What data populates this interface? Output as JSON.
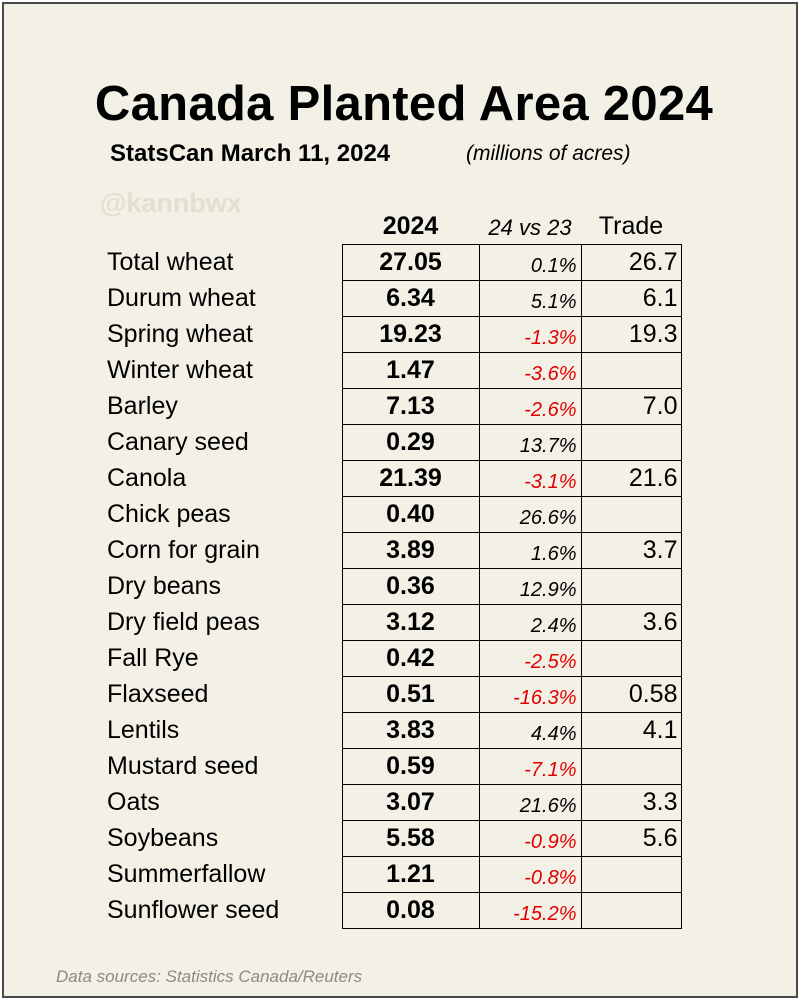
{
  "chart_data": {
    "type": "table",
    "title": "Canada Planted Area 2024",
    "subtitle": "StatsCan March 11, 2024",
    "units": "(millions of acres)",
    "watermark": "@kannbwx",
    "columns": [
      "2024",
      "24 vs 23",
      "Trade"
    ],
    "rows": [
      {
        "crop": "Total wheat",
        "value": "27.05",
        "change": "0.1%",
        "negative": false,
        "trade": "26.7"
      },
      {
        "crop": "Durum wheat",
        "value": "6.34",
        "change": "5.1%",
        "negative": false,
        "trade": "6.1"
      },
      {
        "crop": "Spring wheat",
        "value": "19.23",
        "change": "-1.3%",
        "negative": true,
        "trade": "19.3"
      },
      {
        "crop": "Winter wheat",
        "value": "1.47",
        "change": "-3.6%",
        "negative": true,
        "trade": ""
      },
      {
        "crop": "Barley",
        "value": "7.13",
        "change": "-2.6%",
        "negative": true,
        "trade": "7.0"
      },
      {
        "crop": "Canary seed",
        "value": "0.29",
        "change": "13.7%",
        "negative": false,
        "trade": ""
      },
      {
        "crop": "Canola",
        "value": "21.39",
        "change": "-3.1%",
        "negative": true,
        "trade": "21.6"
      },
      {
        "crop": "Chick peas",
        "value": "0.40",
        "change": "26.6%",
        "negative": false,
        "trade": ""
      },
      {
        "crop": "Corn for grain",
        "value": "3.89",
        "change": "1.6%",
        "negative": false,
        "trade": "3.7"
      },
      {
        "crop": "Dry beans",
        "value": "0.36",
        "change": "12.9%",
        "negative": false,
        "trade": ""
      },
      {
        "crop": "Dry field peas",
        "value": "3.12",
        "change": "2.4%",
        "negative": false,
        "trade": "3.6"
      },
      {
        "crop": "Fall Rye",
        "value": "0.42",
        "change": "-2.5%",
        "negative": true,
        "trade": ""
      },
      {
        "crop": "Flaxseed",
        "value": "0.51",
        "change": "-16.3%",
        "negative": true,
        "trade": "0.58"
      },
      {
        "crop": "Lentils",
        "value": "3.83",
        "change": "4.4%",
        "negative": false,
        "trade": "4.1"
      },
      {
        "crop": "Mustard seed",
        "value": "0.59",
        "change": "-7.1%",
        "negative": true,
        "trade": ""
      },
      {
        "crop": "Oats",
        "value": "3.07",
        "change": "21.6%",
        "negative": false,
        "trade": "3.3"
      },
      {
        "crop": "Soybeans",
        "value": "5.58",
        "change": "-0.9%",
        "negative": true,
        "trade": "5.6"
      },
      {
        "crop": "Summerfallow",
        "value": "1.21",
        "change": "-0.8%",
        "negative": true,
        "trade": ""
      },
      {
        "crop": "Sunflower seed",
        "value": "0.08",
        "change": "-15.2%",
        "negative": true,
        "trade": ""
      }
    ],
    "footer": "Data sources: Statistics Canada/Reuters",
    "colors": {
      "background": "#f3f0e6",
      "negative": "#e00000",
      "footer": "#8a8a8a",
      "watermark": "#e3dfd2"
    }
  }
}
